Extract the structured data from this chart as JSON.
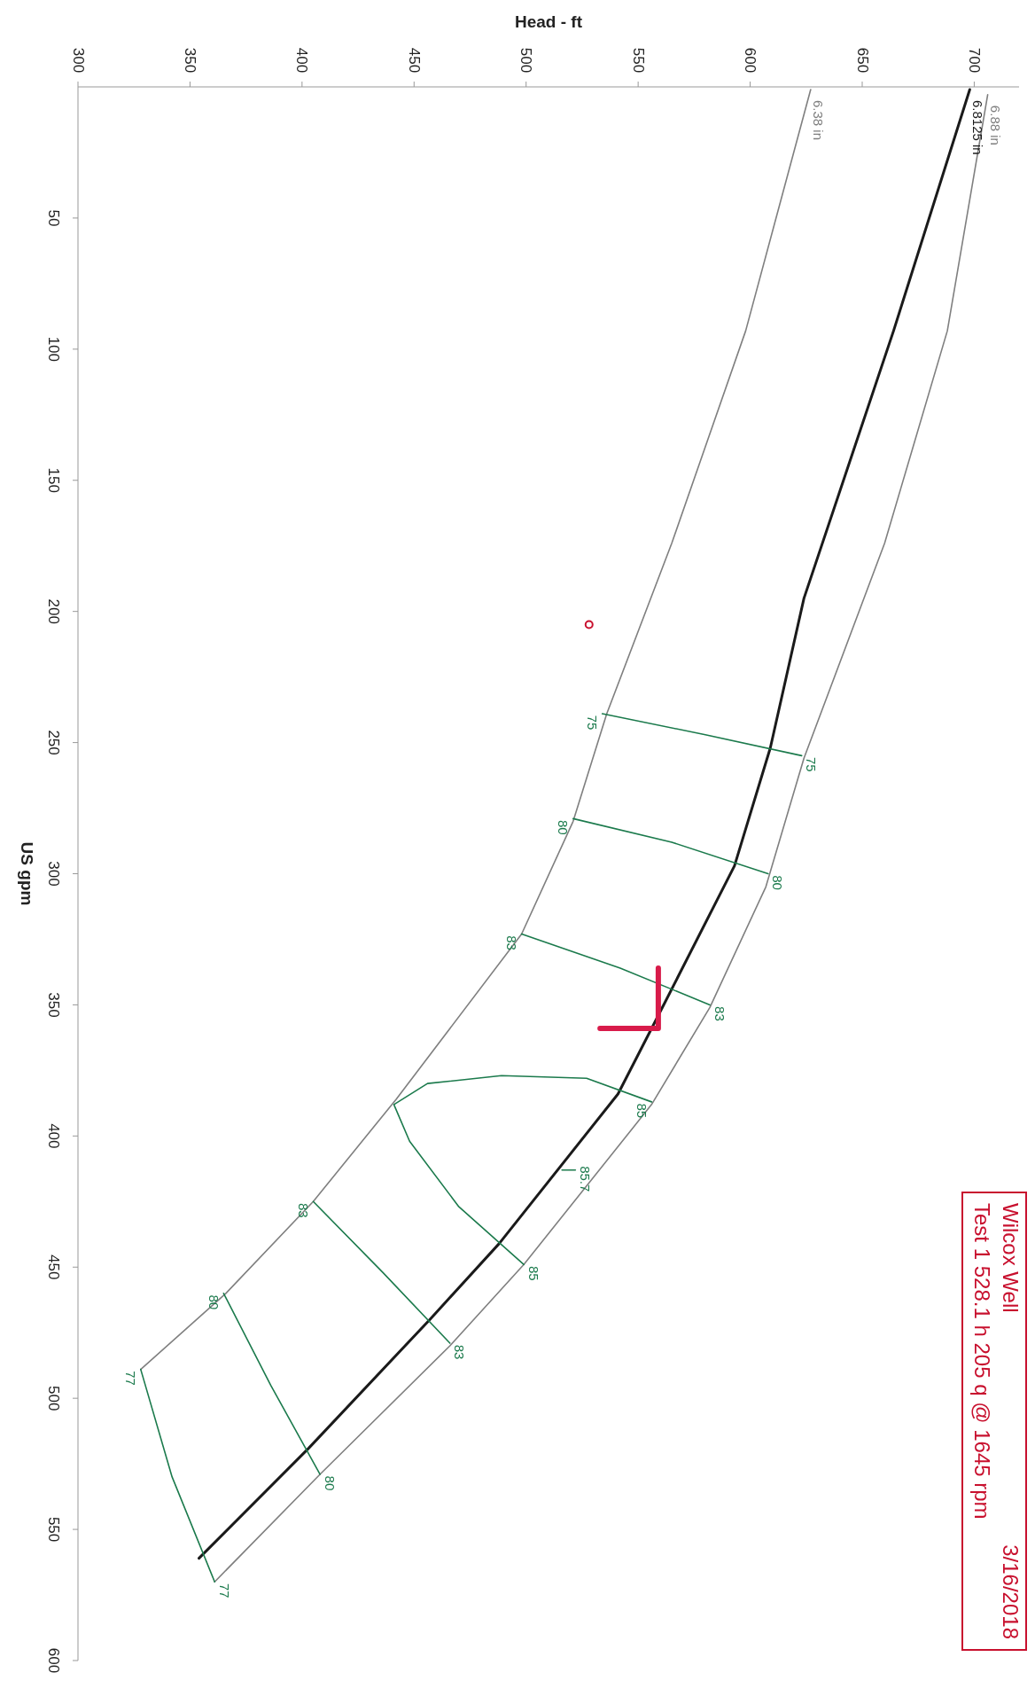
{
  "chart_data": {
    "type": "line",
    "xlabel": "Head - ft",
    "ylabel": "US gpm",
    "xlim": [
      300,
      720
    ],
    "xticks": [
      300,
      350,
      400,
      450,
      500,
      550,
      600,
      650,
      700
    ],
    "ylim": [
      600,
      0
    ],
    "yticks": [
      50,
      100,
      150,
      200,
      250,
      300,
      350,
      400,
      450,
      500,
      550,
      600
    ],
    "grid": false,
    "marker": "none",
    "line_style": "solid",
    "annotations": [
      "Wilcox Well",
      "3/16/2018",
      "Test 1   528.1 h   205 q @ 1645 rpm"
    ],
    "series": [
      {
        "name": "6.88 in",
        "color": "#7f7f7f",
        "x": [
          706,
          688,
          660,
          624,
          607,
          582,
          556,
          499,
          466,
          408,
          361
        ],
        "values": [
          3,
          93,
          174,
          256,
          305,
          351,
          388,
          449,
          480,
          529,
          570
        ]
      },
      {
        "name": "6.8125 in",
        "color": "#1a1a1a",
        "x": [
          698,
          664,
          624,
          609,
          593,
          562,
          541,
          488,
          457,
          403,
          354
        ],
        "values": [
          1,
          93,
          195,
          252,
          297,
          349,
          384,
          441,
          470,
          519,
          561
        ]
      },
      {
        "name": "6.38 in",
        "color": "#7f7f7f",
        "x": [
          627,
          598,
          565,
          536,
          521,
          498,
          442,
          405,
          366,
          328
        ],
        "values": [
          1,
          93,
          174,
          239,
          280,
          323,
          386,
          425,
          460,
          489
        ]
      },
      {
        "name": "75",
        "color": "#1b7a4c",
        "x": [
          534,
          580,
          623
        ],
        "values": [
          239,
          247,
          255
        ]
      },
      {
        "name": "80",
        "color": "#1b7a4c",
        "x": [
          521,
          565,
          608
        ],
        "values": [
          279,
          288,
          300
        ]
      },
      {
        "name": "83",
        "color": "#1b7a4c",
        "x": [
          498,
          542,
          582
        ],
        "values": [
          323,
          336,
          350
        ]
      },
      {
        "name": "85",
        "color": "#1b7a4c",
        "x": [
          556,
          527,
          489,
          456,
          441,
          448,
          470,
          499
        ],
        "values": [
          387,
          378,
          377,
          380,
          388,
          402,
          427,
          449
        ]
      },
      {
        "name": "85.7",
        "color": "#1b7a4c",
        "x": [
          516,
          522
        ],
        "values": [
          413,
          413
        ]
      },
      {
        "name": "83",
        "color": "#1b7a4c",
        "x": [
          405,
          436,
          466
        ],
        "values": [
          425,
          452,
          479
        ]
      },
      {
        "name": "80",
        "color": "#1b7a4c",
        "x": [
          365,
          386,
          408
        ],
        "values": [
          460,
          495,
          529
        ]
      },
      {
        "name": "77",
        "color": "#1b7a4c",
        "x": [
          328,
          342,
          361
        ],
        "values": [
          489,
          530,
          570
        ]
      },
      {
        "color": "#d81b4a",
        "x": [
          559,
          559,
          533
        ],
        "values": [
          336,
          359,
          359
        ]
      },
      {
        "type": "scatter",
        "marker": "circle",
        "color": "#c8102e",
        "x": [
          528.1
        ],
        "values": [
          205
        ]
      }
    ]
  }
}
